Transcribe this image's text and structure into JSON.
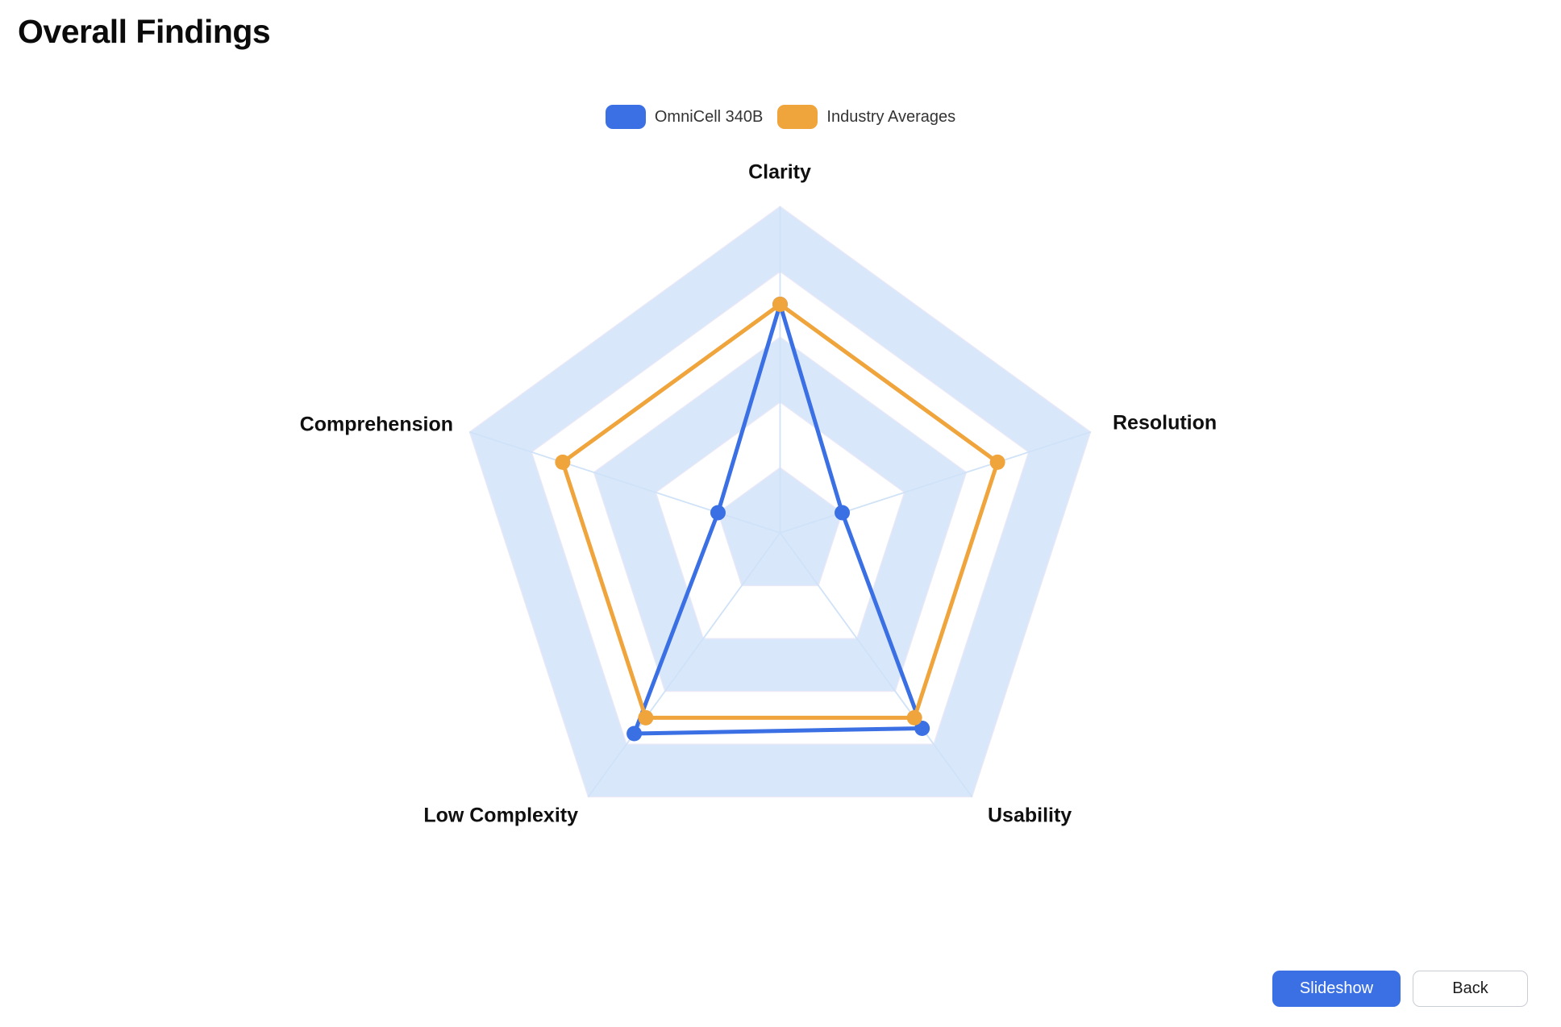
{
  "page": {
    "title": "Overall Findings"
  },
  "chart_data": {
    "type": "radar",
    "title": "",
    "categories": [
      "Clarity",
      "Resolution",
      "Usability",
      "Low Complexity",
      "Comprehension"
    ],
    "series": [
      {
        "name": "OmniCell 340B",
        "color": "#3B70E4",
        "values": [
          7,
          2,
          7.4,
          7.6,
          2
        ]
      },
      {
        "name": "Industry Averages",
        "color": "#F0A43C",
        "values": [
          7,
          7,
          7,
          7,
          7
        ]
      }
    ],
    "scale_min": 0,
    "scale_max": 10,
    "rings": 5,
    "tick_labels_visible": false,
    "legend_position": "top",
    "grid": {
      "band_color": "#D9E7FB",
      "band_alt_color": "#FFFFFF",
      "spoke_color": "#CFE2F7",
      "ring_line_color": "#EBE8F6"
    },
    "point_radius": 9.5,
    "line_width": 5
  },
  "footer": {
    "slideshow_label": "Slideshow",
    "back_label": "Back"
  }
}
